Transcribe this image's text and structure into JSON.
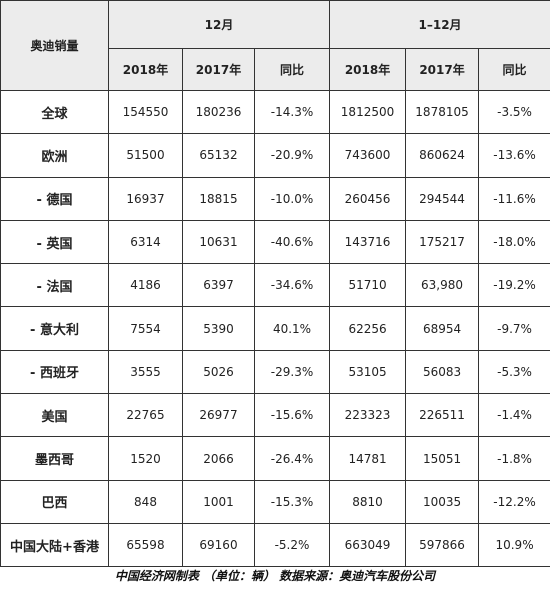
{
  "table": {
    "corner": "奥迪销量",
    "groups": [
      "12月",
      "1–12月"
    ],
    "subheaders": [
      "2018年",
      "2017年",
      "同比",
      "2018年",
      "2017年",
      "同比"
    ],
    "rows": [
      [
        "全球",
        "154550",
        "180236",
        "-14.3%",
        "1812500",
        "1878105",
        "-3.5%"
      ],
      [
        "欧洲",
        "51500",
        "65132",
        "-20.9%",
        "743600",
        "860624",
        "-13.6%"
      ],
      [
        "- 德国",
        "16937",
        "18815",
        "-10.0%",
        "260456",
        "294544",
        "-11.6%"
      ],
      [
        "- 英国",
        "6314",
        "10631",
        "-40.6%",
        "143716",
        "175217",
        "-18.0%"
      ],
      [
        "- 法国",
        "4186",
        "6397",
        "-34.6%",
        "51710",
        "63,980",
        "-19.2%"
      ],
      [
        "- 意大利",
        "7554",
        "5390",
        "40.1%",
        "62256",
        "68954",
        "-9.7%"
      ],
      [
        "- 西班牙",
        "3555",
        "5026",
        "-29.3%",
        "53105",
        "56083",
        "-5.3%"
      ],
      [
        "美国",
        "22765",
        "26977",
        "-15.6%",
        "223323",
        "226511",
        "-1.4%"
      ],
      [
        "墨西哥",
        "1520",
        "2066",
        "-26.4%",
        "14781",
        "15051",
        "-1.8%"
      ],
      [
        "巴西",
        "848",
        "1001",
        "-15.3%",
        "8810",
        "10035",
        "-12.2%"
      ],
      [
        "中国大陆+香港",
        "65598",
        "69160",
        "-5.2%",
        "663049",
        "597866",
        "10.9%"
      ]
    ]
  },
  "footer": "中国经济网制表 （单位：辆） 数据来源：奥迪汽车股份公司"
}
